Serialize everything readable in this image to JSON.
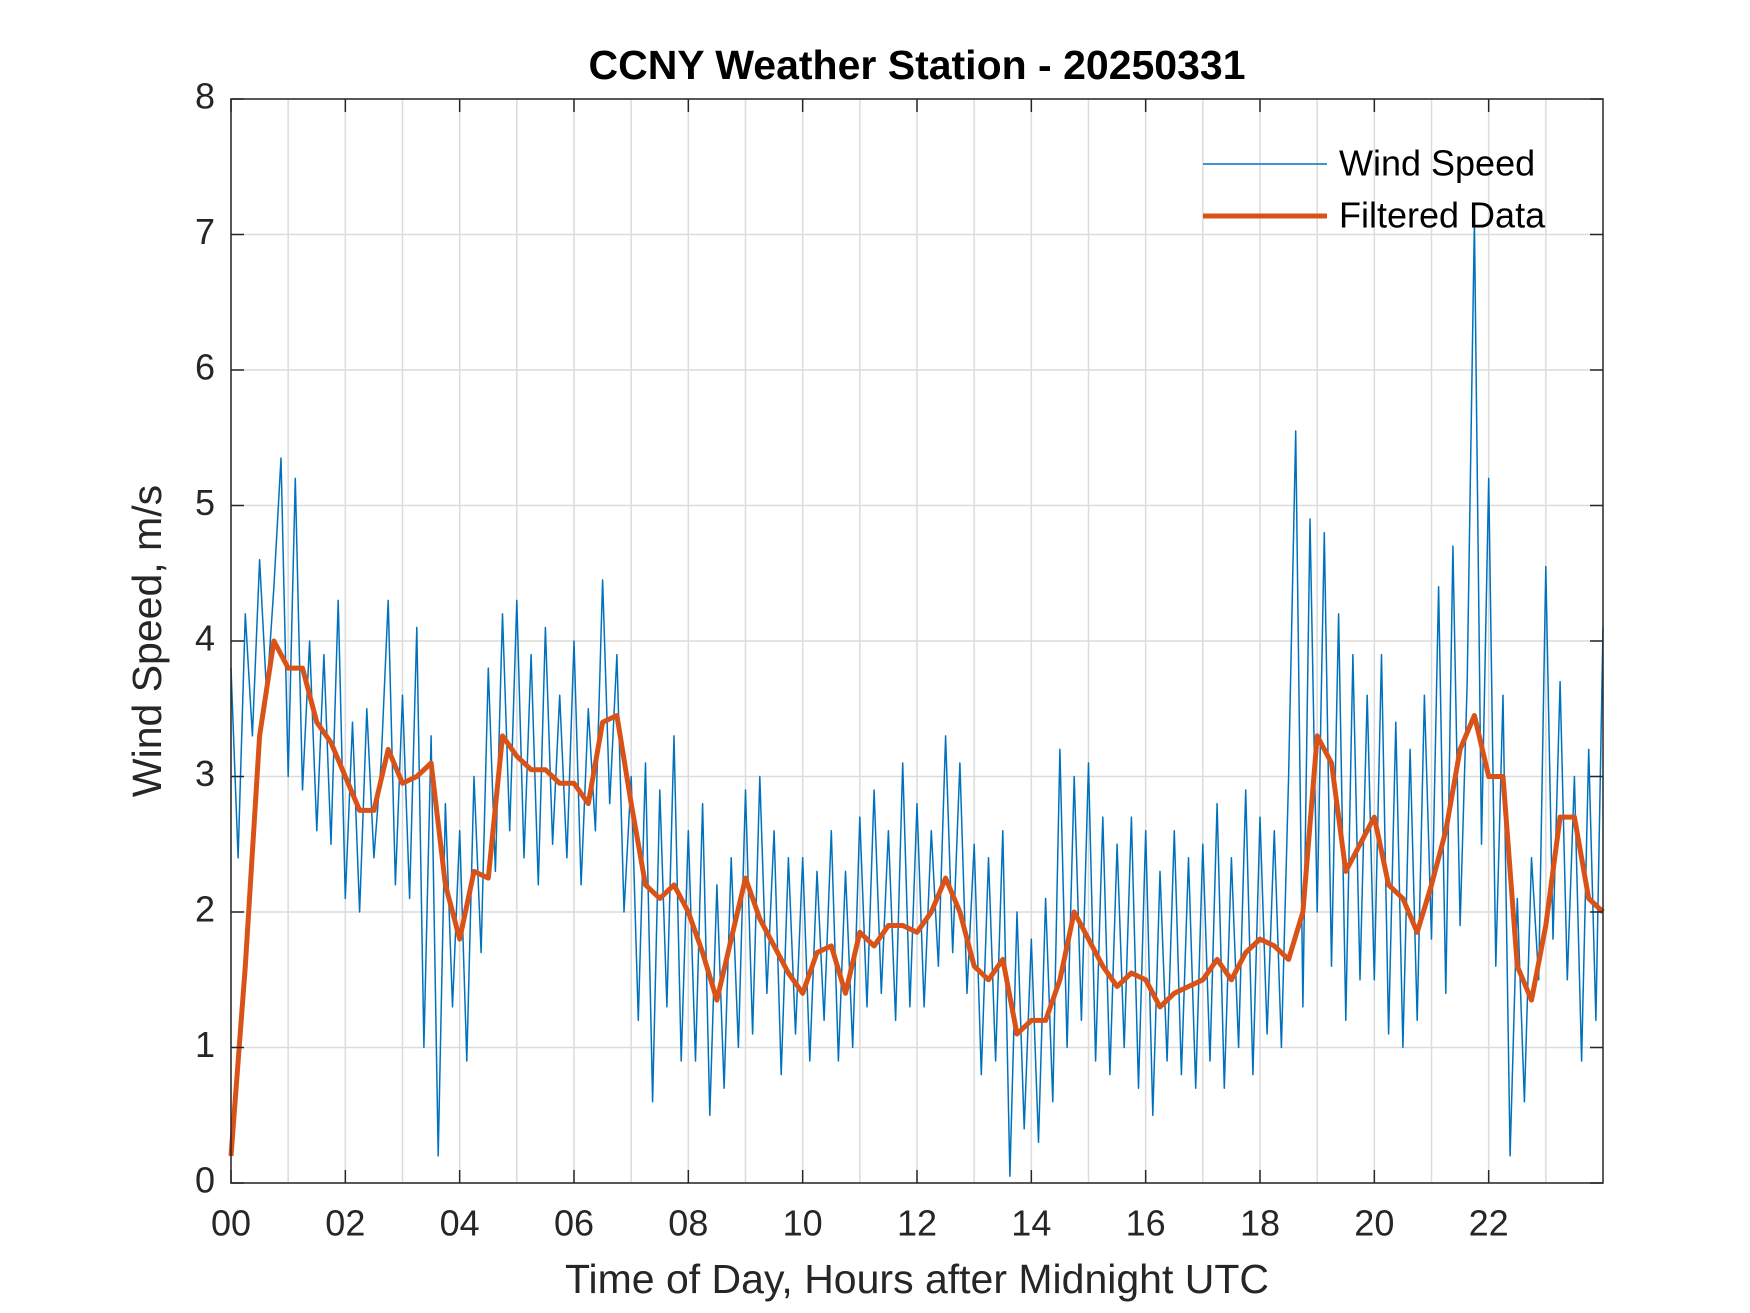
{
  "chart_data": {
    "type": "line",
    "title": "CCNY Weather Station - 20250331",
    "xlabel": "Time of Day, Hours after Midnight UTC",
    "ylabel": "Wind Speed, m/s",
    "xlim": [
      0,
      24
    ],
    "ylim": [
      0,
      8
    ],
    "xticks": [
      {
        "value": 0,
        "label": "00"
      },
      {
        "value": 2,
        "label": "02"
      },
      {
        "value": 4,
        "label": "04"
      },
      {
        "value": 6,
        "label": "06"
      },
      {
        "value": 8,
        "label": "08"
      },
      {
        "value": 10,
        "label": "10"
      },
      {
        "value": 12,
        "label": "12"
      },
      {
        "value": 14,
        "label": "14"
      },
      {
        "value": 16,
        "label": "16"
      },
      {
        "value": 18,
        "label": "18"
      },
      {
        "value": 20,
        "label": "20"
      },
      {
        "value": 22,
        "label": "22"
      }
    ],
    "x_minor_grid": [
      1,
      3,
      5,
      7,
      9,
      11,
      13,
      15,
      17,
      19,
      21,
      23
    ],
    "yticks": [
      0,
      1,
      2,
      3,
      4,
      5,
      6,
      7,
      8
    ],
    "grid": true,
    "legend": "upper right",
    "series": [
      {
        "name": "Wind Speed",
        "color": "#0072BD",
        "width": 1.5,
        "x": [
          0,
          0.125,
          0.25,
          0.375,
          0.5,
          0.625,
          0.75,
          0.875,
          1,
          1.125,
          1.25,
          1.375,
          1.5,
          1.625,
          1.75,
          1.875,
          2,
          2.125,
          2.25,
          2.375,
          2.5,
          2.625,
          2.75,
          2.875,
          3,
          3.125,
          3.25,
          3.375,
          3.5,
          3.625,
          3.75,
          3.875,
          4,
          4.125,
          4.25,
          4.375,
          4.5,
          4.625,
          4.75,
          4.875,
          5,
          5.125,
          5.25,
          5.375,
          5.5,
          5.625,
          5.75,
          5.875,
          6,
          6.125,
          6.25,
          6.375,
          6.5,
          6.625,
          6.75,
          6.875,
          7,
          7.125,
          7.25,
          7.375,
          7.5,
          7.625,
          7.75,
          7.875,
          8,
          8.125,
          8.25,
          8.375,
          8.5,
          8.625,
          8.75,
          8.875,
          9,
          9.125,
          9.25,
          9.375,
          9.5,
          9.625,
          9.75,
          9.875,
          10,
          10.125,
          10.25,
          10.375,
          10.5,
          10.625,
          10.75,
          10.875,
          11,
          11.125,
          11.25,
          11.375,
          11.5,
          11.625,
          11.75,
          11.875,
          12,
          12.125,
          12.25,
          12.375,
          12.5,
          12.625,
          12.75,
          12.875,
          13,
          13.125,
          13.25,
          13.375,
          13.5,
          13.625,
          13.75,
          13.875,
          14,
          14.125,
          14.25,
          14.375,
          14.5,
          14.625,
          14.75,
          14.875,
          15,
          15.125,
          15.25,
          15.375,
          15.5,
          15.625,
          15.75,
          15.875,
          16,
          16.125,
          16.25,
          16.375,
          16.5,
          16.625,
          16.75,
          16.875,
          17,
          17.125,
          17.25,
          17.375,
          17.5,
          17.625,
          17.75,
          17.875,
          18,
          18.125,
          18.25,
          18.375,
          18.5,
          18.625,
          18.75,
          18.875,
          19,
          19.125,
          19.25,
          19.375,
          19.5,
          19.625,
          19.75,
          19.875,
          20,
          20.125,
          20.25,
          20.375,
          20.5,
          20.625,
          20.75,
          20.875,
          21,
          21.125,
          21.25,
          21.375,
          21.5,
          21.625,
          21.75,
          21.875,
          22,
          22.125,
          22.25,
          22.375,
          22.5,
          22.625,
          22.75,
          22.875,
          23,
          23.125,
          23.25,
          23.375,
          23.5,
          23.625,
          23.75,
          23.875,
          24
        ],
        "values": [
          3.8,
          2.4,
          4.2,
          3.3,
          4.6,
          3.6,
          4.4,
          5.35,
          3.0,
          5.2,
          2.9,
          4.0,
          2.6,
          3.9,
          2.5,
          4.3,
          2.1,
          3.4,
          2.0,
          3.5,
          2.4,
          3.1,
          4.3,
          2.2,
          3.6,
          2.1,
          4.1,
          1.0,
          3.3,
          0.2,
          2.8,
          1.3,
          2.6,
          0.9,
          3.0,
          1.7,
          3.8,
          2.3,
          4.2,
          2.6,
          4.3,
          2.4,
          3.9,
          2.2,
          4.1,
          2.5,
          3.6,
          2.4,
          4.0,
          2.2,
          3.5,
          2.6,
          4.45,
          2.8,
          3.9,
          2.0,
          3.0,
          1.2,
          3.1,
          0.6,
          2.9,
          1.3,
          3.3,
          0.9,
          2.6,
          0.9,
          2.8,
          0.5,
          2.2,
          0.7,
          2.4,
          1.0,
          2.9,
          1.1,
          3.0,
          1.4,
          2.6,
          0.8,
          2.4,
          1.1,
          2.4,
          0.9,
          2.3,
          1.2,
          2.6,
          0.9,
          2.3,
          1.0,
          2.7,
          1.3,
          2.9,
          1.4,
          2.6,
          1.2,
          3.1,
          1.3,
          2.8,
          1.3,
          2.6,
          1.6,
          3.3,
          1.7,
          3.1,
          1.4,
          2.5,
          0.8,
          2.4,
          0.9,
          2.6,
          0.05,
          2.0,
          0.4,
          1.8,
          0.3,
          2.1,
          0.6,
          3.2,
          1.0,
          3.0,
          1.2,
          3.1,
          0.9,
          2.7,
          0.8,
          2.5,
          1.0,
          2.7,
          0.7,
          2.6,
          0.5,
          2.3,
          0.9,
          2.6,
          0.8,
          2.4,
          0.7,
          2.5,
          0.9,
          2.8,
          0.7,
          2.4,
          1.0,
          2.9,
          0.8,
          2.7,
          1.1,
          2.6,
          1.0,
          3.0,
          5.55,
          1.3,
          4.9,
          2.0,
          4.8,
          1.6,
          4.2,
          1.2,
          3.9,
          1.5,
          3.6,
          1.5,
          3.9,
          1.1,
          3.4,
          1.0,
          3.2,
          1.2,
          3.6,
          1.8,
          4.4,
          1.4,
          4.7,
          1.9,
          3.7,
          7.1,
          2.5,
          5.2,
          1.6,
          3.6,
          0.2,
          2.1,
          0.6,
          2.4,
          1.5,
          4.55,
          1.8,
          3.7,
          1.5,
          3.0,
          0.9,
          3.2,
          1.2,
          4.1
        ]
      },
      {
        "name": "Filtered Data",
        "color": "#D95319",
        "width": 5,
        "x": [
          0,
          0.25,
          0.5,
          0.75,
          1,
          1.25,
          1.5,
          1.75,
          2,
          2.25,
          2.5,
          2.75,
          3,
          3.25,
          3.5,
          3.75,
          4,
          4.25,
          4.5,
          4.75,
          5,
          5.25,
          5.5,
          5.75,
          6,
          6.25,
          6.5,
          6.75,
          7,
          7.25,
          7.5,
          7.75,
          8,
          8.25,
          8.5,
          8.75,
          9,
          9.25,
          9.5,
          9.75,
          10,
          10.25,
          10.5,
          10.75,
          11,
          11.25,
          11.5,
          11.75,
          12,
          12.25,
          12.5,
          12.75,
          13,
          13.25,
          13.5,
          13.75,
          14,
          14.25,
          14.5,
          14.75,
          15,
          15.25,
          15.5,
          15.75,
          16,
          16.25,
          16.5,
          16.75,
          17,
          17.25,
          17.5,
          17.75,
          18,
          18.25,
          18.5,
          18.75,
          19,
          19.25,
          19.5,
          19.75,
          20,
          20.25,
          20.5,
          20.75,
          21,
          21.25,
          21.5,
          21.75,
          22,
          22.25,
          22.5,
          22.75,
          23,
          23.25,
          23.5,
          23.75,
          24
        ],
        "values": [
          0.2,
          1.6,
          3.3,
          4.0,
          3.8,
          3.8,
          3.4,
          3.25,
          3.0,
          2.75,
          2.75,
          3.2,
          2.95,
          3.0,
          3.1,
          2.2,
          1.8,
          2.3,
          2.25,
          3.3,
          3.15,
          3.05,
          3.05,
          2.95,
          2.95,
          2.8,
          3.4,
          3.45,
          2.8,
          2.2,
          2.1,
          2.2,
          2.0,
          1.7,
          1.35,
          1.8,
          2.25,
          1.95,
          1.75,
          1.55,
          1.4,
          1.7,
          1.75,
          1.4,
          1.85,
          1.75,
          1.9,
          1.9,
          1.85,
          2.0,
          2.25,
          2.0,
          1.6,
          1.5,
          1.65,
          1.1,
          1.2,
          1.2,
          1.5,
          2.0,
          1.8,
          1.6,
          1.45,
          1.55,
          1.5,
          1.3,
          1.4,
          1.45,
          1.5,
          1.65,
          1.5,
          1.7,
          1.8,
          1.75,
          1.65,
          2.0,
          3.3,
          3.1,
          2.3,
          2.5,
          2.7,
          2.2,
          2.1,
          1.85,
          2.2,
          2.6,
          3.2,
          3.45,
          3.0,
          3.0,
          1.6,
          1.35,
          1.9,
          2.7,
          2.7,
          2.1,
          2.0
        ]
      }
    ]
  }
}
